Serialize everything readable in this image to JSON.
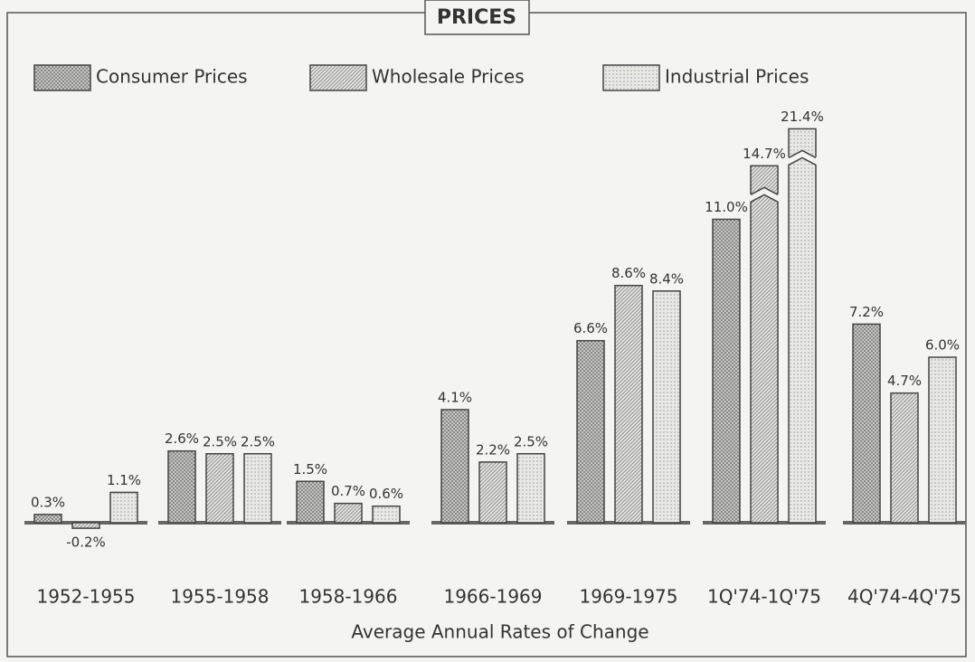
{
  "chart_data": {
    "type": "bar",
    "title": "PRICES",
    "x_label": "Average Annual Rates of Change",
    "categories": [
      "1952-1955",
      "1955-1958",
      "1958-1966",
      "1966-1969",
      "1969-1975",
      "1Q'74-1Q'75",
      "4Q'74-4Q'75"
    ],
    "series": [
      {
        "name": "Consumer Prices",
        "color": "#8a8a8a",
        "values": [
          0.3,
          2.6,
          1.5,
          4.1,
          6.6,
          11.0,
          7.2
        ],
        "value_labels": [
          "0.3%",
          "2.6%",
          "1.5%",
          "4.1%",
          "6.6%",
          "11.0%",
          "7.2%"
        ]
      },
      {
        "name": "Wholesale Prices",
        "color": "#9a9a9a",
        "values": [
          -0.2,
          2.5,
          0.7,
          2.2,
          8.6,
          14.7,
          4.7
        ],
        "value_labels": [
          "-0.2%",
          "2.5%",
          "0.7%",
          "2.2%",
          "8.6%",
          "14.7%",
          "4.7%"
        ]
      },
      {
        "name": "Industrial Prices",
        "color": "#b0b0b0",
        "values": [
          1.1,
          2.5,
          0.6,
          2.5,
          8.4,
          21.4,
          6.0
        ],
        "value_labels": [
          "1.1%",
          "2.5%",
          "0.6%",
          "2.5%",
          "8.4%",
          "21.4%",
          "6.0%"
        ]
      }
    ]
  }
}
